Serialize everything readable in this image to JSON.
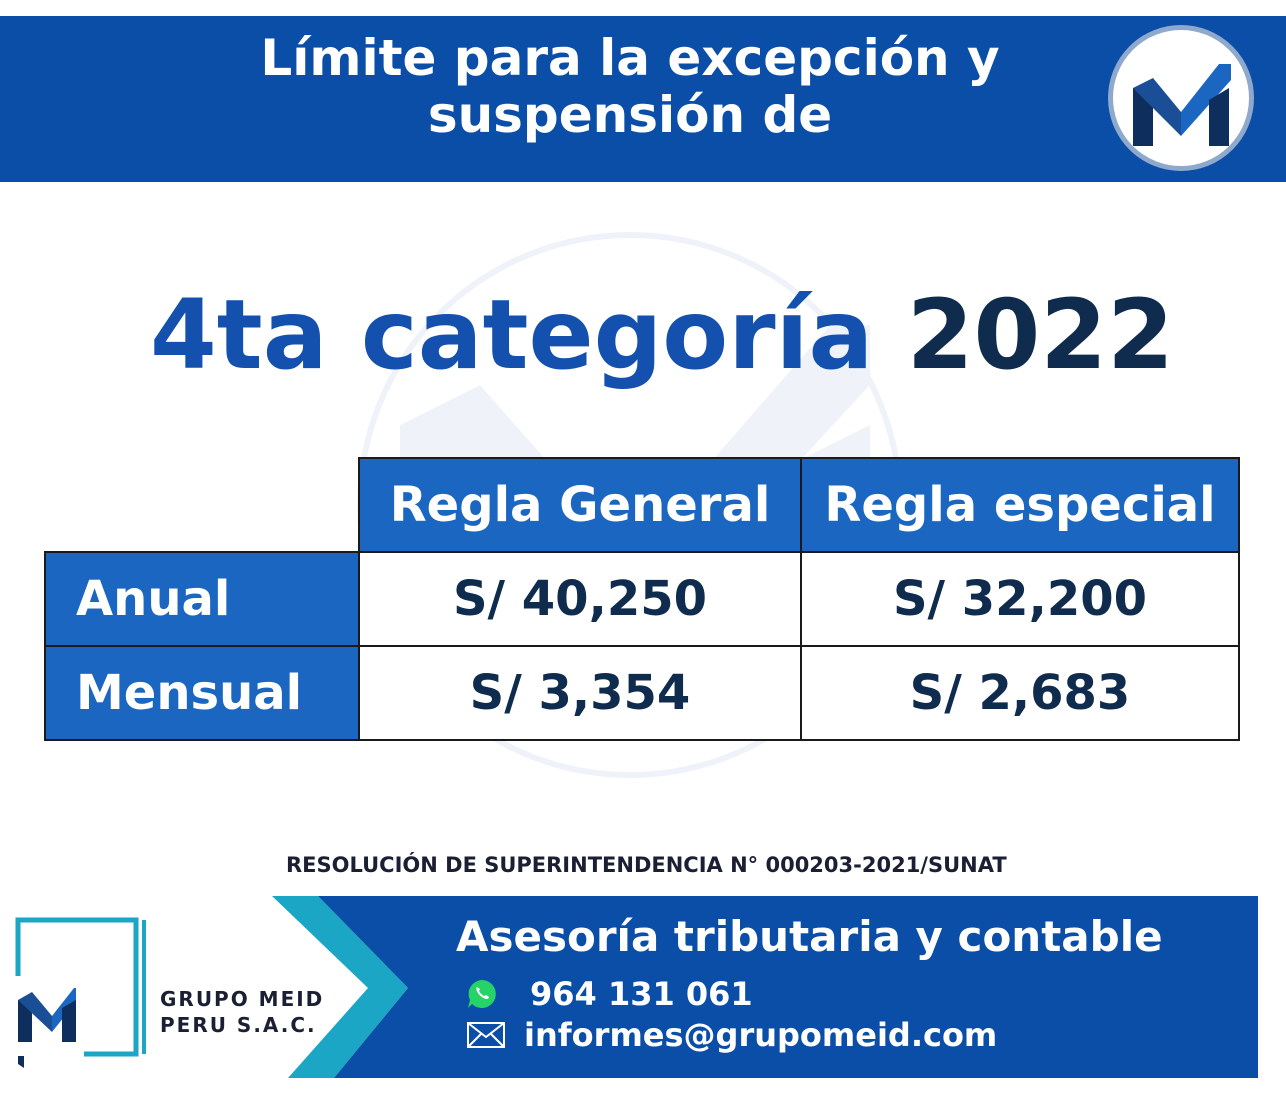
{
  "header": {
    "title_line1": "Límite para la excepción y",
    "title_line2": "suspensión de",
    "logo_icon": "meid-logo-icon"
  },
  "heading": {
    "part1": "4ta categoría",
    "year": "2022"
  },
  "table": {
    "columns": [
      "Regla General",
      "Regla especial"
    ],
    "rows": [
      {
        "label": "Anual",
        "values": [
          "S/ 40,250",
          "S/ 32,200"
        ]
      },
      {
        "label": "Mensual",
        "values": [
          "S/ 3,354",
          "S/ 2,683"
        ]
      }
    ]
  },
  "resolution": "RESOLUCIÓN DE SUPERINTENDENCIA N° 000203-2021/SUNAT",
  "footer": {
    "company_line1": "GRUPO MEID",
    "company_line2": "PERU S.A.C.",
    "tagline": "Asesoría tributaria y contable",
    "phone": "964 131 061",
    "email": "informes@grupomeid.com",
    "phone_icon": "whatsapp-icon",
    "email_icon": "envelope-icon"
  },
  "colors": {
    "brand_blue": "#0b4ea8",
    "table_blue": "#1a66c0",
    "dark_navy": "#0f2b4d",
    "teal": "#1aa6c4"
  }
}
